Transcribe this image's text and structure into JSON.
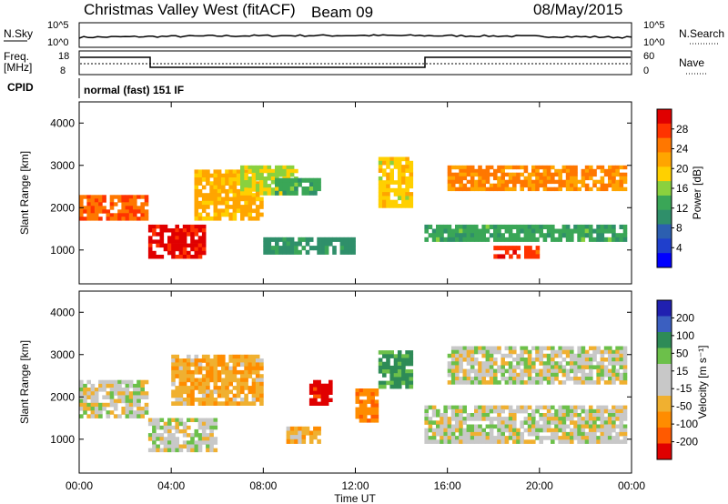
{
  "header": {
    "station": "Christmas Valley West (fitACF)",
    "beam": "Beam 09",
    "date": "08/May/2015"
  },
  "panels": {
    "nsky": {
      "label": "N.Sky",
      "ticks": [
        "10^5",
        "10^0"
      ],
      "right_label": "N.Search",
      "right_ticks": [
        "10^5",
        "10^0"
      ]
    },
    "freq": {
      "label_line1": "Freq.",
      "label_line2": "[MHz]",
      "ticks": [
        "18",
        "8"
      ],
      "right_label": "Nave",
      "right_ticks": [
        "60",
        "0"
      ]
    },
    "cpid": {
      "label": "CPID",
      "text": "normal (fast) 151 IF"
    }
  },
  "colorbars": {
    "power": {
      "label": "Power [dB]",
      "ticks": [
        "28",
        "24",
        "20",
        "16",
        "12",
        "8",
        "4"
      ],
      "colors": [
        "#e00000",
        "#ff3300",
        "#ff7700",
        "#ffa500",
        "#ffd000",
        "#8ad13e",
        "#3aa657",
        "#2f8f6a",
        "#2c5fb0",
        "#1f3fcc",
        "#0000ff"
      ]
    },
    "velocity": {
      "label": "Velocity [m s⁻¹]",
      "ticks": [
        "200",
        "100",
        "50",
        "15",
        "-15",
        "-50",
        "-100",
        "-200"
      ],
      "colors": [
        "#2020b0",
        "#3b5fc0",
        "#2e8b57",
        "#6cc04a",
        "#c8c8c8",
        "#c8c8c8",
        "#f0b030",
        "#ff8c00",
        "#ff5a00",
        "#e00000"
      ]
    }
  },
  "chart_data": [
    {
      "type": "heatmap",
      "title": "",
      "xlabel": "Time UT",
      "ylabel": "Slant Range [km]",
      "x_ticks": [
        "00:00",
        "04:00",
        "08:00",
        "12:00",
        "16:00",
        "20:00",
        "00:00"
      ],
      "y_ticks": [
        "4000",
        "3000",
        "2000",
        "1000"
      ],
      "ylim": [
        200,
        4500
      ],
      "value": "Power [dB]",
      "clim": [
        0,
        30
      ],
      "regions": [
        {
          "t0": 0.0,
          "t1": 3.0,
          "r0": 1700,
          "r1": 2300,
          "v": 24
        },
        {
          "t0": 3.0,
          "t1": 5.5,
          "r0": 800,
          "r1": 1600,
          "v": 28
        },
        {
          "t0": 5.0,
          "t1": 8.0,
          "r0": 1700,
          "r1": 2900,
          "v": 20
        },
        {
          "t0": 7.0,
          "t1": 9.5,
          "r0": 2300,
          "r1": 3000,
          "v": 16
        },
        {
          "t0": 8.5,
          "t1": 10.5,
          "r0": 2300,
          "r1": 2700,
          "v": 12
        },
        {
          "t0": 13.0,
          "t1": 14.5,
          "r0": 2000,
          "r1": 3200,
          "v": 18
        },
        {
          "t0": 16.0,
          "t1": 23.8,
          "r0": 2400,
          "r1": 3000,
          "v": 22
        },
        {
          "t0": 18.0,
          "t1": 20.0,
          "r0": 800,
          "r1": 1100,
          "v": 26
        },
        {
          "t0": 15.0,
          "t1": 23.8,
          "r0": 1200,
          "r1": 1600,
          "v": 12
        },
        {
          "t0": 8.0,
          "t1": 12.0,
          "r0": 900,
          "r1": 1300,
          "v": 10
        }
      ]
    },
    {
      "type": "heatmap",
      "title": "",
      "xlabel": "Time UT",
      "ylabel": "Slant Range [km]",
      "x_ticks": [
        "00:00",
        "04:00",
        "08:00",
        "12:00",
        "16:00",
        "20:00",
        "00:00"
      ],
      "y_ticks": [
        "4000",
        "3000",
        "2000",
        "1000"
      ],
      "ylim": [
        200,
        4500
      ],
      "value": "Velocity [m s⁻¹]",
      "clim": [
        -250,
        250
      ],
      "regions": [
        {
          "t0": 0.0,
          "t1": 3.0,
          "r0": 1500,
          "r1": 2400,
          "v": 0
        },
        {
          "t0": 3.0,
          "t1": 6.0,
          "r0": 700,
          "r1": 1500,
          "v": 0
        },
        {
          "t0": 4.0,
          "t1": 8.0,
          "r0": 1800,
          "r1": 3000,
          "v": -40
        },
        {
          "t0": 9.0,
          "t1": 10.5,
          "r0": 900,
          "r1": 1300,
          "v": -40
        },
        {
          "t0": 10.0,
          "t1": 11.0,
          "r0": 1800,
          "r1": 2400,
          "v": -220
        },
        {
          "t0": 13.0,
          "t1": 14.5,
          "r0": 2200,
          "r1": 3100,
          "v": 60
        },
        {
          "t0": 16.0,
          "t1": 23.8,
          "r0": 2300,
          "r1": 3200,
          "v": 0
        },
        {
          "t0": 15.0,
          "t1": 23.8,
          "r0": 900,
          "r1": 1800,
          "v": 0
        },
        {
          "t0": 12.0,
          "t1": 13.0,
          "r0": 1400,
          "r1": 2200,
          "v": -80
        }
      ]
    }
  ]
}
